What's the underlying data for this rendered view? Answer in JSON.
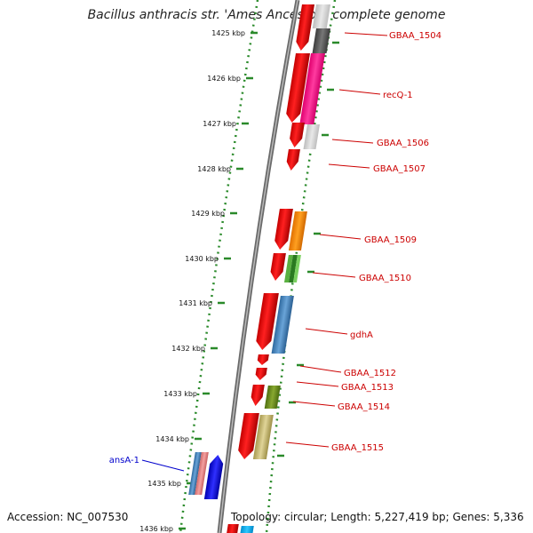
{
  "title": "Bacillus anthracis str. 'Ames Ancestor', complete genome",
  "footer": {
    "accession": "Accession: NC_007530",
    "summary": "Topology: circular; Length: 5,227,419 bp; Genes: 5,336"
  },
  "colors": {
    "backbone": "#8a8a8a",
    "tick": "#2a8a2a",
    "cds": "#ee0000",
    "label_forward": "#cc0000",
    "label_reverse": "#0000cc"
  },
  "kbp_ticks": [
    "1425 kbp",
    "1426 kbp",
    "1427 kbp",
    "1428 kbp",
    "1429 kbp",
    "1430 kbp",
    "1431 kbp",
    "1432 kbp",
    "1433 kbp",
    "1434 kbp",
    "1435 kbp",
    "1436 kbp"
  ],
  "gene_labels": [
    {
      "text": "GBAA_1504",
      "color": "#cc0000"
    },
    {
      "text": "recQ-1",
      "color": "#cc0000"
    },
    {
      "text": "GBAA_1506",
      "color": "#cc0000"
    },
    {
      "text": "GBAA_1507",
      "color": "#cc0000"
    },
    {
      "text": "GBAA_1509",
      "color": "#cc0000"
    },
    {
      "text": "GBAA_1510",
      "color": "#cc0000"
    },
    {
      "text": "gdhA",
      "color": "#cc0000"
    },
    {
      "text": "GBAA_1512",
      "color": "#cc0000"
    },
    {
      "text": "GBAA_1513",
      "color": "#cc0000"
    },
    {
      "text": "GBAA_1514",
      "color": "#cc0000"
    },
    {
      "text": "GBAA_1515",
      "color": "#cc0000"
    },
    {
      "text": "ansA-1",
      "color": "#0000cc"
    }
  ]
}
